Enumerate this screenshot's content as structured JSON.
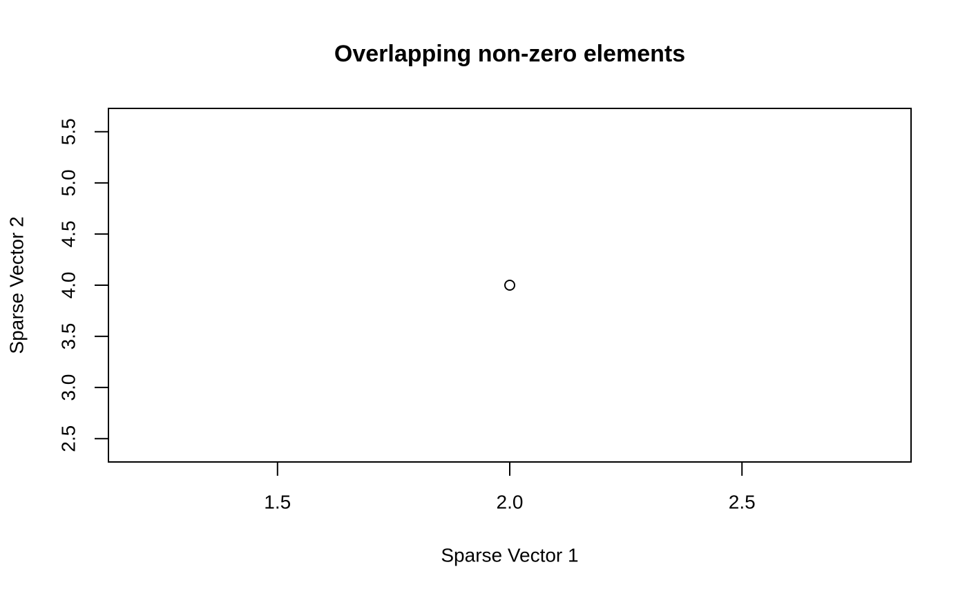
{
  "chart_data": {
    "type": "scatter",
    "title": "Overlapping non-zero elements",
    "x_label": "Sparse Vector 1",
    "y_label": "Sparse Vector 2",
    "x": [
      2.0
    ],
    "values": [
      4.0
    ],
    "color": "#000000",
    "xlim": [
      1.136,
      2.864
    ],
    "ylim": [
      2.272,
      5.728
    ],
    "xticks": [
      {
        "value": 1.5,
        "label": "1.5"
      },
      {
        "value": 2,
        "label": "2.0"
      },
      {
        "value": 2.5,
        "label": "2.5"
      }
    ],
    "yticks": [
      {
        "value": 2.5,
        "label": "2.5"
      },
      {
        "value": 3,
        "label": "3.0"
      },
      {
        "value": 3.5,
        "label": "3.5"
      },
      {
        "value": 4,
        "label": "4.0"
      },
      {
        "value": 4.5,
        "label": "4.5"
      },
      {
        "value": 5,
        "label": "5.0"
      },
      {
        "value": 5.5,
        "label": "5.5"
      }
    ]
  }
}
